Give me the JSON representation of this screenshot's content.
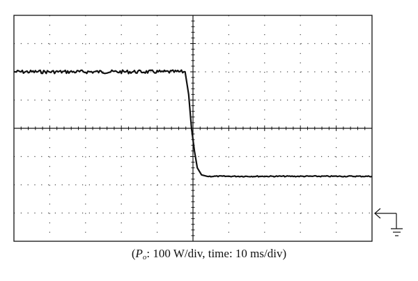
{
  "chart_data": {
    "type": "line",
    "title": "",
    "xlabel": "",
    "ylabel": "",
    "grid": true,
    "divisions": {
      "x": 10,
      "y": 8
    },
    "scale": {
      "y_per_div": 100,
      "y_unit": "W",
      "x_per_div": 10,
      "x_unit": "ms"
    },
    "xlim": [
      0,
      100
    ],
    "ylim": [
      -100,
      700
    ],
    "ground_reference_level": 0,
    "series": [
      {
        "x": [
          0,
          41,
          47.8,
          48.8,
          49.6,
          50.4,
          51.2,
          52.4,
          54,
          60,
          100
        ],
        "y": [
          500,
          500,
          500,
          420,
          300,
          220,
          160,
          135,
          130,
          130,
          130
        ]
      }
    ]
  },
  "caption": {
    "open": "(",
    "var": "P",
    "sub": "o",
    "rest": ": 100 W/div, time: 10 ms/div)"
  },
  "icons": {
    "ground_marker": "ground-arrow-icon"
  }
}
